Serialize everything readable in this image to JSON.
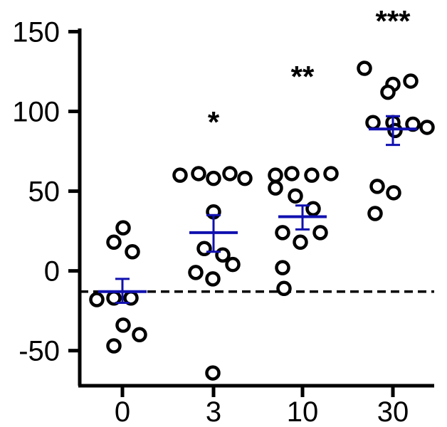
{
  "chart_data": {
    "type": "scatter",
    "title": "",
    "xlabel": "",
    "ylabel": "",
    "categories": [
      "0",
      "3",
      "10",
      "30"
    ],
    "ylim": [
      -72,
      152
    ],
    "y_ticks": [
      "150",
      "100",
      "50",
      "0",
      "-50"
    ],
    "y_tick_values": [
      150,
      100,
      50,
      0,
      -50
    ],
    "baseline": -13,
    "grid": false,
    "colors": {
      "points": "#000000",
      "mean_sem": "#1010b0",
      "baseline": "#000000"
    },
    "groups": [
      {
        "category": "0",
        "significance": "",
        "mean": -13,
        "sem_low": -20,
        "sem_high": -5,
        "values": [
          27,
          18,
          12,
          -18,
          -17,
          -17,
          -34,
          -40,
          -47
        ]
      },
      {
        "category": "3",
        "significance": "*",
        "mean": 24,
        "sem_low": 12,
        "sem_high": 35,
        "values": [
          60,
          61,
          58,
          61,
          58,
          37,
          14,
          10,
          4,
          -1,
          -5,
          -64
        ]
      },
      {
        "category": "10",
        "significance": "**",
        "mean": 34,
        "sem_low": 26,
        "sem_high": 41,
        "values": [
          60,
          61,
          60,
          61,
          52,
          47,
          39,
          24,
          18,
          24,
          2,
          -11
        ]
      },
      {
        "category": "30",
        "significance": "***",
        "mean": 89,
        "sem_low": 79,
        "sem_high": 97,
        "values": [
          127,
          117,
          119,
          112,
          93,
          93,
          92,
          90,
          88,
          53,
          49,
          36
        ]
      }
    ]
  }
}
